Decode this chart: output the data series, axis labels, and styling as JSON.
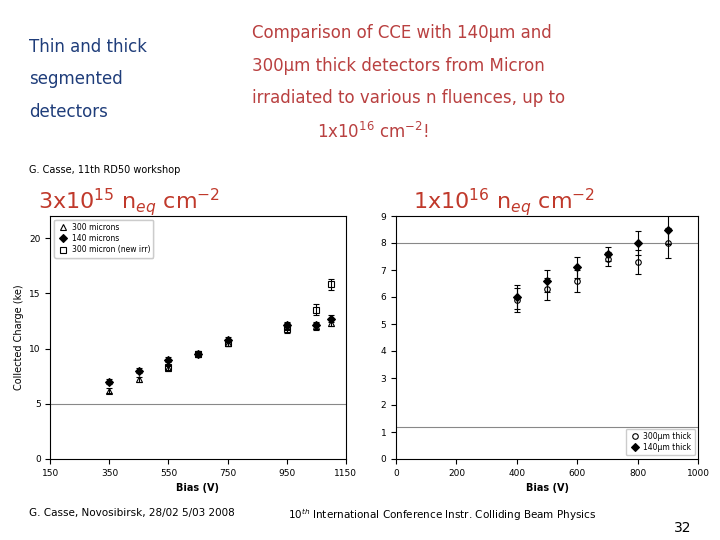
{
  "bg_color": "#ffffff",
  "title_left": "Thin and thick\nsegmented\ndetectors",
  "title_left_color": "#1f3d7a",
  "title_right_line1": "Comparison of CCE with 140μm and",
  "title_right_line2": "300μm thick detectors from Micron",
  "title_right_line3": "irradiated to various n fluences, up to",
  "title_right_line4": "1x10",
  "title_right_line4b": "16",
  "title_right_line4c": " cm",
  "title_right_line4d": "-2",
  "title_right_line4e": "!",
  "title_right_color": "#b94040",
  "subtitle_color": "#c0392b",
  "credit": "G. Casse, 11th RD50 workshop",
  "footer_left": "G. Casse, Novosibirsk, 28/02 5/03 2008",
  "page_num": "32",
  "plot1": {
    "xlabel": "Bias (V)",
    "ylabel": "Collected Charge (ke)",
    "xlim": [
      150,
      1150
    ],
    "ylim": [
      0,
      22
    ],
    "xticks": [
      150,
      350,
      550,
      750,
      950,
      1150
    ],
    "yticks": [
      0,
      5,
      10,
      15,
      20
    ],
    "hline_y": 5.0,
    "series": [
      {
        "label": "△ 300 microns",
        "marker": "^",
        "filled": false,
        "x": [
          350,
          450,
          550,
          750,
          950,
          1050,
          1100
        ],
        "y": [
          6.2,
          7.2,
          8.2,
          10.5,
          12.0,
          12.0,
          12.3
        ],
        "yerr": [
          0.25,
          0.25,
          0.25,
          0.25,
          0.3,
          0.3,
          0.3
        ]
      },
      {
        "label": "◆ 140 microns",
        "marker": "D",
        "filled": true,
        "x": [
          350,
          450,
          550,
          650,
          750,
          950,
          1050,
          1100
        ],
        "y": [
          7.0,
          8.0,
          9.0,
          9.5,
          10.8,
          12.1,
          12.1,
          12.7
        ],
        "yerr": [
          0.25,
          0.25,
          0.25,
          0.25,
          0.25,
          0.3,
          0.3,
          0.3
        ]
      },
      {
        "label": "□ 300 micron (new irr)",
        "marker": "s",
        "filled": false,
        "x": [
          550,
          650,
          750,
          950,
          1050,
          1100
        ],
        "y": [
          8.3,
          9.5,
          10.5,
          11.8,
          13.5,
          15.8
        ],
        "yerr": [
          0.25,
          0.3,
          0.3,
          0.4,
          0.5,
          0.5
        ]
      }
    ]
  },
  "plot2": {
    "xlabel": "Bias (V)",
    "xlim": [
      0,
      1000
    ],
    "ylim": [
      0.0,
      9.0
    ],
    "xticks": [
      0,
      200,
      400,
      600,
      800,
      1000
    ],
    "yticks": [
      0.0,
      1.0,
      2.0,
      3.0,
      4.0,
      5.0,
      6.0,
      7.0,
      8.0,
      9.0
    ],
    "hline_y1": 1.2,
    "hline_y2": 8.0,
    "series": [
      {
        "label": "○ 300μm thick",
        "marker": "o",
        "filled": false,
        "x": [
          400,
          500,
          600,
          700,
          800,
          900
        ],
        "y": [
          5.9,
          6.3,
          6.6,
          7.4,
          7.3,
          8.0
        ],
        "yerr": [
          0.45,
          0.4,
          0.4,
          0.25,
          0.45,
          0.55
        ]
      },
      {
        "label": "◆ 140μm thick",
        "marker": "D",
        "filled": true,
        "x": [
          400,
          500,
          600,
          700,
          800,
          900
        ],
        "y": [
          6.0,
          6.6,
          7.1,
          7.6,
          8.0,
          8.5
        ],
        "yerr": [
          0.45,
          0.4,
          0.4,
          0.25,
          0.45,
          0.55
        ]
      }
    ]
  }
}
